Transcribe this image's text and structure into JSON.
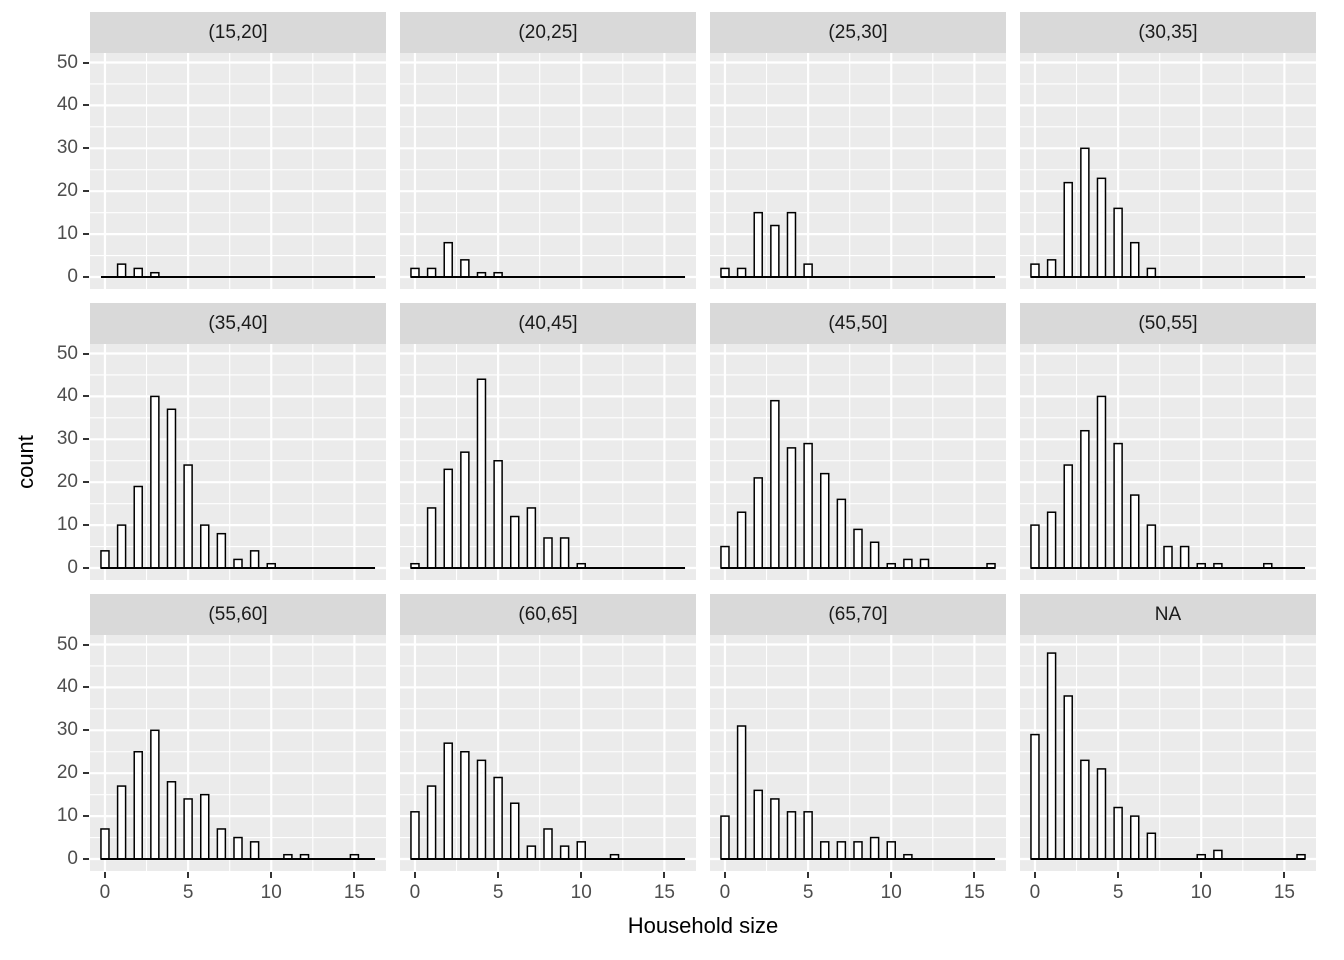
{
  "chart_data": {
    "type": "bar",
    "subtype": "faceted-histogram",
    "title": "",
    "xlabel": "Household size",
    "ylabel": "count",
    "bin_start": 0,
    "bin_end": 16,
    "x_ticks": [
      0,
      5,
      10,
      15
    ],
    "y_ticks": [
      0,
      10,
      20,
      30,
      40,
      50
    ],
    "xlim": [
      -0.9,
      16.9
    ],
    "ylim": [
      0,
      55
    ],
    "grid": "on",
    "legend": "none",
    "facet_layout": {
      "rows": 3,
      "cols": 4
    },
    "facets": [
      {
        "label": "(15,20]",
        "values": [
          0,
          3,
          2,
          1,
          0,
          0,
          0,
          0,
          0,
          0,
          0,
          0,
          0,
          0,
          0,
          0,
          0
        ]
      },
      {
        "label": "(20,25]",
        "values": [
          2,
          2,
          8,
          4,
          1,
          1,
          0,
          0,
          0,
          0,
          0,
          0,
          0,
          0,
          0,
          0,
          0
        ]
      },
      {
        "label": "(25,30]",
        "values": [
          2,
          2,
          15,
          12,
          15,
          3,
          0,
          0,
          0,
          0,
          0,
          0,
          0,
          0,
          0,
          0,
          0
        ]
      },
      {
        "label": "(30,35]",
        "values": [
          3,
          4,
          22,
          30,
          23,
          16,
          8,
          2,
          0,
          0,
          0,
          0,
          0,
          0,
          0,
          0,
          0
        ]
      },
      {
        "label": "(35,40]",
        "values": [
          4,
          10,
          19,
          40,
          37,
          24,
          10,
          8,
          2,
          4,
          1,
          0,
          0,
          0,
          0,
          0,
          0
        ]
      },
      {
        "label": "(40,45]",
        "values": [
          1,
          14,
          23,
          27,
          44,
          25,
          12,
          14,
          7,
          7,
          1,
          0,
          0,
          0,
          0,
          0,
          0
        ]
      },
      {
        "label": "(45,50]",
        "values": [
          5,
          13,
          21,
          39,
          28,
          29,
          22,
          16,
          9,
          6,
          1,
          2,
          2,
          0,
          0,
          0,
          1
        ]
      },
      {
        "label": "(50,55]",
        "values": [
          10,
          13,
          24,
          32,
          40,
          29,
          17,
          10,
          5,
          5,
          1,
          1,
          0,
          0,
          1,
          0,
          0
        ]
      },
      {
        "label": "(55,60]",
        "values": [
          7,
          17,
          25,
          30,
          18,
          14,
          15,
          7,
          5,
          4,
          0,
          1,
          1,
          0,
          0,
          1,
          0
        ]
      },
      {
        "label": "(60,65]",
        "values": [
          11,
          17,
          27,
          25,
          23,
          19,
          13,
          3,
          7,
          3,
          4,
          0,
          1,
          0,
          0,
          0,
          0
        ]
      },
      {
        "label": "(65,70]",
        "values": [
          10,
          31,
          16,
          14,
          11,
          11,
          4,
          4,
          4,
          5,
          4,
          1,
          0,
          0,
          0,
          0,
          0
        ]
      },
      {
        "label": "NA",
        "values": [
          29,
          48,
          38,
          23,
          21,
          12,
          10,
          6,
          0,
          0,
          1,
          2,
          0,
          0,
          0,
          0,
          1
        ]
      }
    ]
  },
  "style": {
    "panel_bg": "#EBEBEB",
    "strip_bg": "#D9D9D9",
    "grid_color": "#FFFFFF",
    "bar_fill": "#FFFFFF",
    "bar_stroke": "#000000",
    "baseline_color": "#000000",
    "axis_text_color": "#4D4D4D",
    "axis_title_color": "#000000"
  }
}
